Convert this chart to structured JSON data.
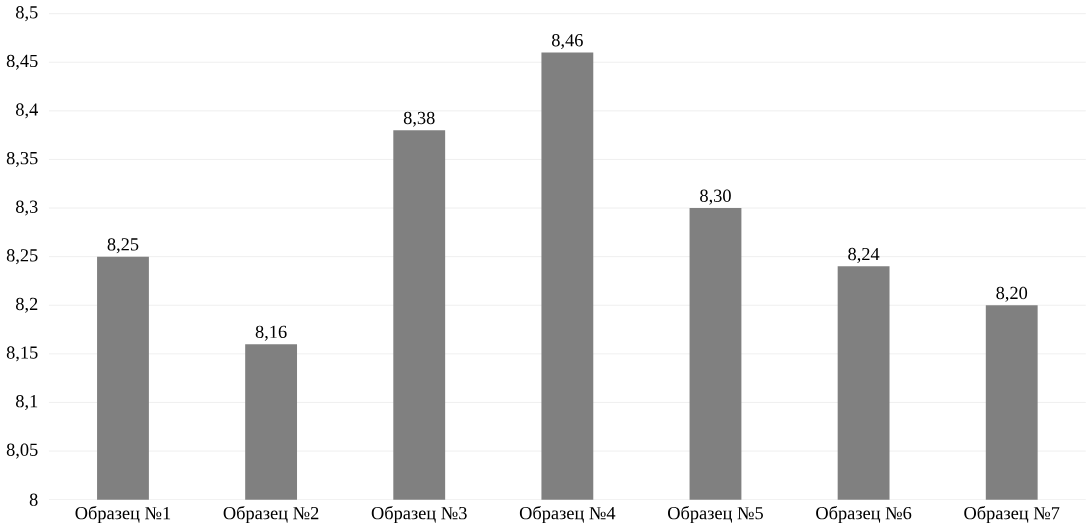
{
  "chart_data": {
    "type": "bar",
    "categories": [
      "Образец №1",
      "Образец №2",
      "Образец №3",
      "Образец №4",
      "Образец №5",
      "Образец №6",
      "Образец №7"
    ],
    "values": [
      8.25,
      8.16,
      8.38,
      8.46,
      8.3,
      8.24,
      8.2
    ],
    "value_labels": [
      "8,25",
      "8,16",
      "8,38",
      "8,46",
      "8,30",
      "8,24",
      "8,20"
    ],
    "color": "#808080",
    "ylim": [
      8,
      8.5
    ],
    "yticks": [
      {
        "value": 8,
        "label": "8"
      },
      {
        "value": 8.05,
        "label": "8,05"
      },
      {
        "value": 8.1,
        "label": "8,1"
      },
      {
        "value": 8.15,
        "label": "8,15"
      },
      {
        "value": 8.2,
        "label": "8,2"
      },
      {
        "value": 8.25,
        "label": "8,25"
      },
      {
        "value": 8.3,
        "label": "8,3"
      },
      {
        "value": 8.35,
        "label": "8,35"
      },
      {
        "value": 8.4,
        "label": "8,4"
      },
      {
        "value": 8.45,
        "label": "8,45"
      },
      {
        "value": 8.5,
        "label": "8,5"
      }
    ],
    "grid": "y"
  }
}
